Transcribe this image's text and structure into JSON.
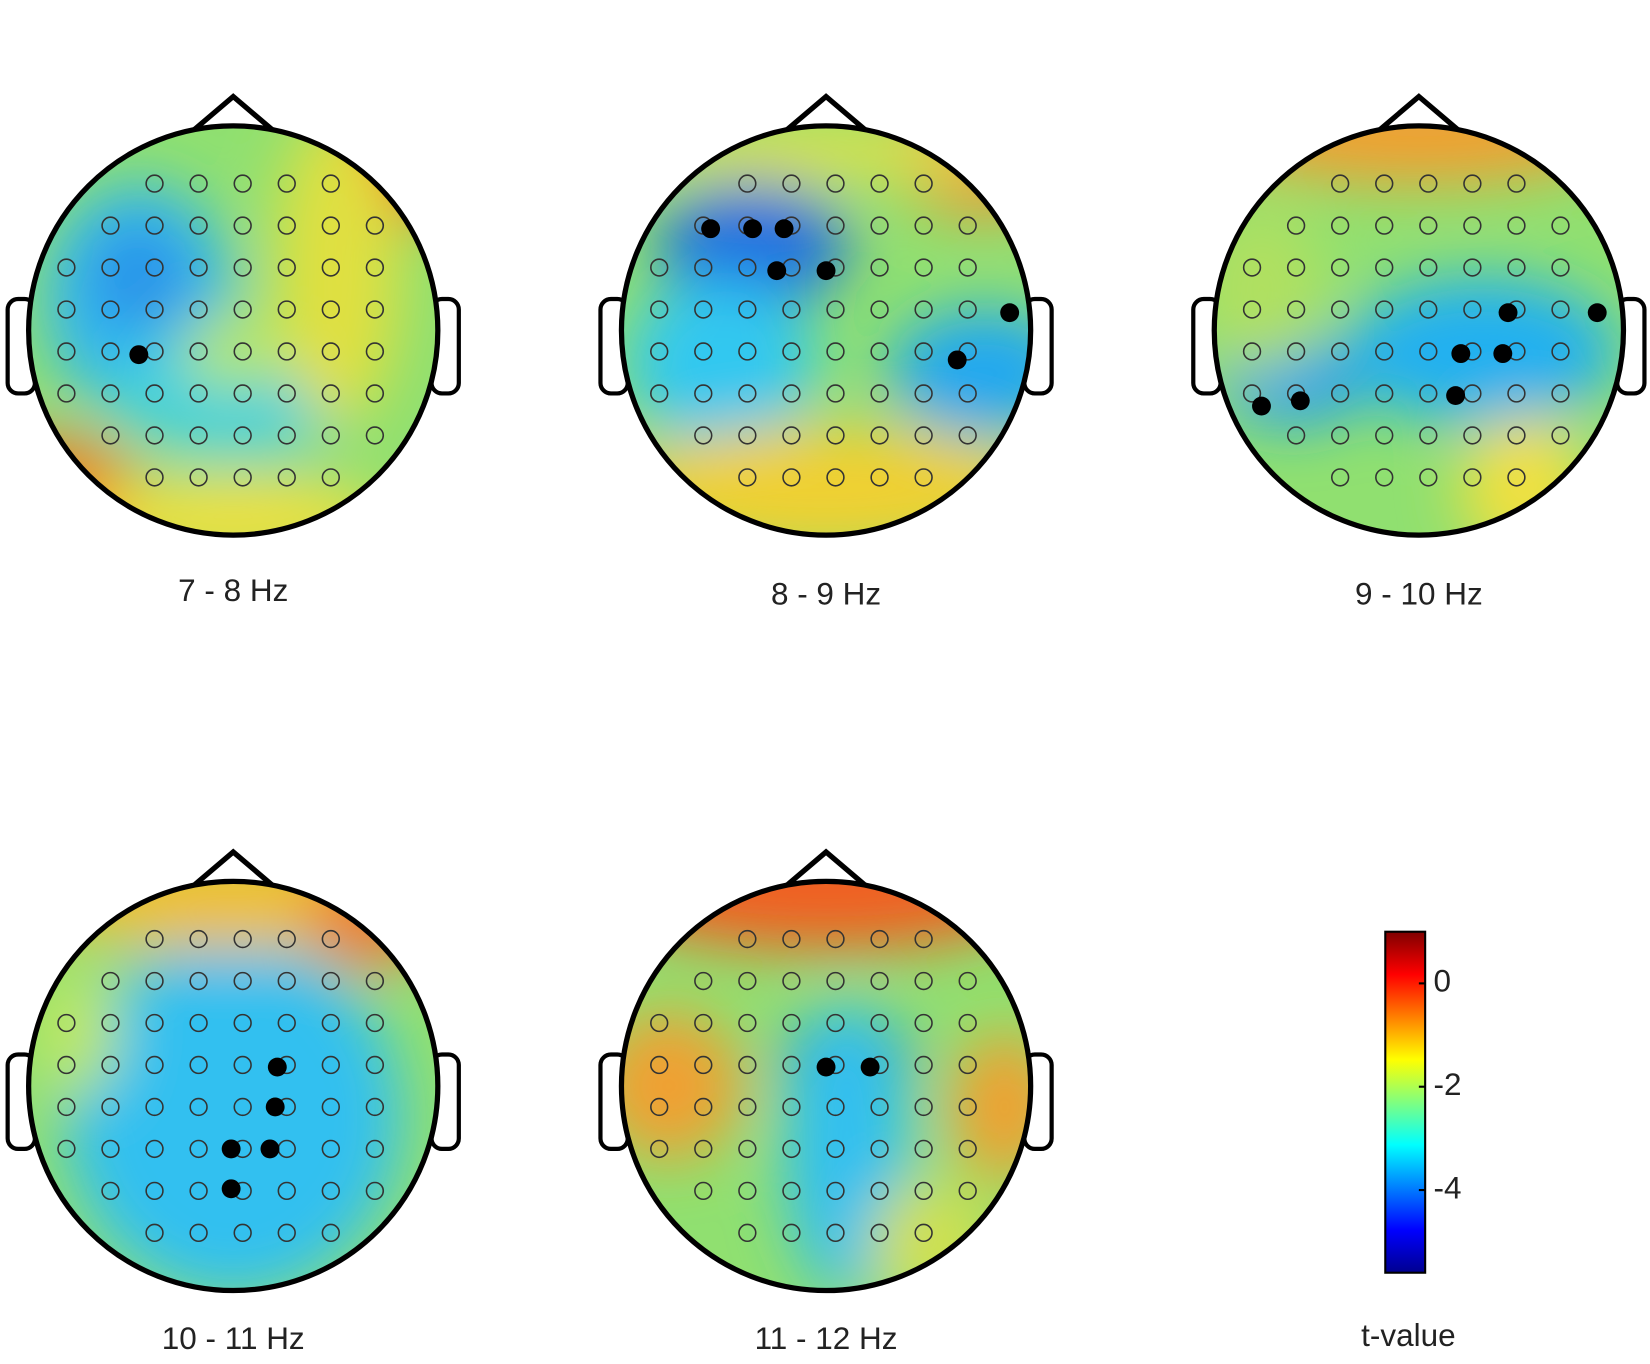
{
  "chart_data": {
    "type": "topoplot",
    "panels": [
      {
        "label": "7 - 8 Hz"
      },
      {
        "label": "8 - 9 Hz"
      },
      {
        "label": "9 - 10 Hz"
      },
      {
        "label": "10 - 11 Hz"
      },
      {
        "label": "11 - 12 Hz"
      }
    ],
    "colorbar": {
      "label": "t-value",
      "clim": [
        -5.6,
        1
      ],
      "ticks": [
        0,
        -2,
        -4
      ]
    }
  }
}
